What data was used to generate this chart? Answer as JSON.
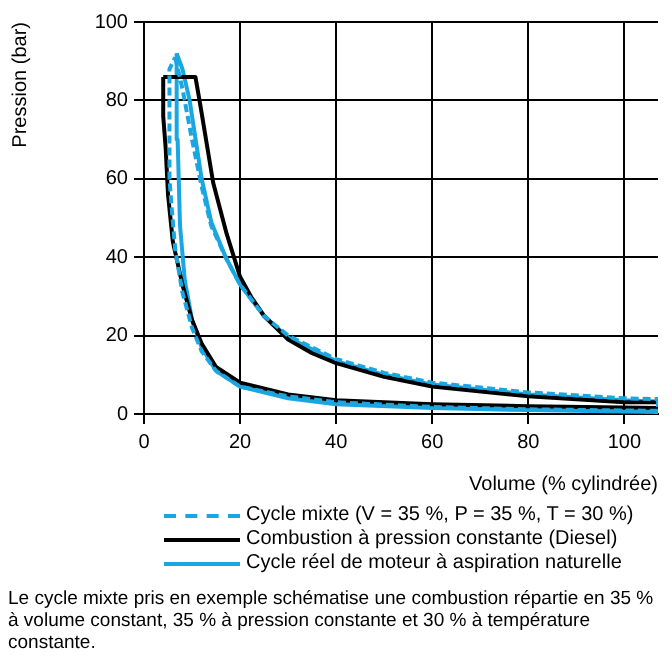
{
  "chart_data": {
    "type": "line",
    "xlabel": "Volume (% cylindrée)",
    "ylabel": "Pression (bar)",
    "xlim": [
      0,
      107
    ],
    "ylim": [
      0,
      100
    ],
    "xticks": [
      0,
      20,
      40,
      60,
      80,
      100
    ],
    "yticks": [
      0,
      20,
      40,
      60,
      80,
      100
    ],
    "grid": true,
    "legend": "bottom",
    "marker": "none",
    "series": [
      {
        "name": "Cycle mixte (V = 35 %, P = 35 %, T = 30 %)",
        "color": "#1aa6e0",
        "line_style": "dashed",
        "x": [
          107,
          107,
          80,
          60,
          40,
          30,
          20,
          15,
          12,
          10,
          8,
          6.5,
          5.8,
          5.3,
          5.3,
          6.5
        ],
        "values": [
          3.8,
          0.8,
          1.2,
          1.8,
          3,
          4.5,
          7,
          11,
          16,
          22,
          31,
          42,
          52,
          60,
          88,
          91
        ]
      },
      {
        "color": "#1aa6e0",
        "line_style": "dashed",
        "x": [
          6.5,
          8,
          10,
          12,
          14,
          17,
          20,
          25,
          30,
          40,
          50,
          60,
          80,
          100,
          107
        ],
        "values": [
          91,
          83,
          70,
          58,
          48,
          40,
          33,
          25,
          20,
          14,
          10.5,
          8,
          5.5,
          4,
          3.8
        ]
      },
      {
        "name": "Combustion à pression constante (Diesel)",
        "color": "#000000",
        "line_style": "solid",
        "x": [
          107,
          107,
          80,
          60,
          40,
          30,
          20,
          15,
          12,
          10,
          8,
          6,
          5,
          4.5,
          4,
          4
        ],
        "values": [
          3,
          1.5,
          2,
          2.5,
          3.5,
          5,
          8,
          12,
          18,
          24,
          33,
          44,
          56,
          68,
          76,
          86
        ]
      },
      {
        "color": "#000000",
        "line_style": "solid",
        "x": [
          4,
          10.7,
          11.7,
          14.4,
          17.2,
          20,
          22.5,
          25,
          30,
          35,
          40,
          50,
          60,
          80,
          100,
          107
        ],
        "values": [
          86,
          86,
          79,
          59,
          46,
          35,
          29.5,
          25,
          19,
          15.5,
          13,
          9.5,
          7,
          4.5,
          3,
          3
        ]
      },
      {
        "name": "Cycle réel de moteur à aspiration naturelle",
        "color": "#1aa6e0",
        "line_style": "solid",
        "x": [
          107,
          107,
          80,
          60,
          40,
          30,
          20,
          15,
          12,
          10,
          8.5,
          7.5,
          7,
          6.8
        ],
        "values": [
          3.2,
          0.5,
          1,
          1.5,
          2.5,
          4,
          7,
          11,
          17,
          24,
          34,
          48,
          70,
          92
        ]
      },
      {
        "color": "#1aa6e0",
        "line_style": "solid",
        "x": [
          6.8,
          8,
          9.5,
          12,
          14,
          17,
          20,
          25,
          30,
          40,
          50,
          60,
          80,
          100,
          107
        ],
        "values": [
          92,
          88,
          80,
          60,
          49,
          40,
          33,
          25,
          19.5,
          13.5,
          10,
          7.5,
          5,
          3.5,
          3.2
        ]
      }
    ],
    "annotations": [
      "Le cycle mixte pris en exemple schématise une combustion répartie en 35 % à volume constant, 35 % à pression constante et 30 % à température constante."
    ]
  }
}
